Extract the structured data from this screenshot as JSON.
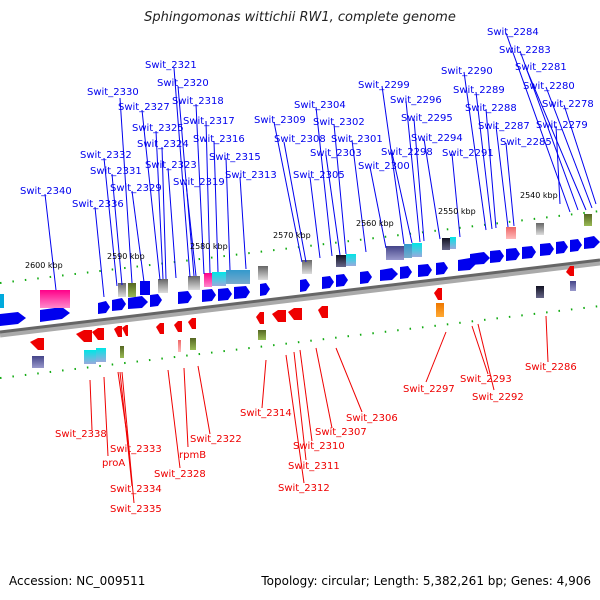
{
  "title": "Sphingomonas wittichii RW1, complete genome",
  "footer": {
    "accession": "Accession: NC_009511",
    "topology": "Topology: circular; Length: 5,382,261 bp; Genes: 4,906"
  },
  "colors": {
    "forward": "#0000ee",
    "reverse": "#ee0000",
    "backbone": "#7f7f7f"
  },
  "kbp_ticks": [
    "2600 kbp",
    "2590 kbp",
    "2580 kbp",
    "2570 kbp",
    "2560 kbp",
    "2550 kbp",
    "2540 kbp"
  ],
  "forward_labels": [
    "Swit_2340",
    "Swit_2336",
    "Swit_2332",
    "Swit_2331",
    "Swit_2330",
    "Swit_2329",
    "Swit_2327",
    "Swit_2325",
    "Swit_2324",
    "Swit_2323",
    "Swit_2321",
    "Swit_2320",
    "Swit_2319",
    "Swit_2318",
    "Swit_2317",
    "Swit_2316",
    "Swit_2315",
    "Swit_2313",
    "Swit_2309",
    "Swit_2308",
    "Swit_2305",
    "Swit_2304",
    "Swit_2303",
    "Swit_2302",
    "Swit_2301",
    "Swit_2300",
    "Swit_2299",
    "Swit_2298",
    "Swit_2296",
    "Swit_2295",
    "Swit_2294",
    "Swit_2291",
    "Swit_2290",
    "Swit_2289",
    "Swit_2288",
    "Swit_2287",
    "Swit_2285",
    "Swit_2284",
    "Swit_2283",
    "Swit_2281",
    "Swit_2280",
    "Swit_2279",
    "Swit_2278"
  ],
  "reverse_labels": [
    "Swit_2338",
    "proA",
    "Swit_2333",
    "Swit_2334",
    "Swit_2335",
    "rpmB",
    "Swit_2328",
    "Swit_2322",
    "Swit_2314",
    "Swit_2312",
    "Swit_2311",
    "Swit_2310",
    "Swit_2307",
    "Swit_2306",
    "Swit_2297",
    "Swit_2293",
    "Swit_2292",
    "Swit_2286"
  ]
}
